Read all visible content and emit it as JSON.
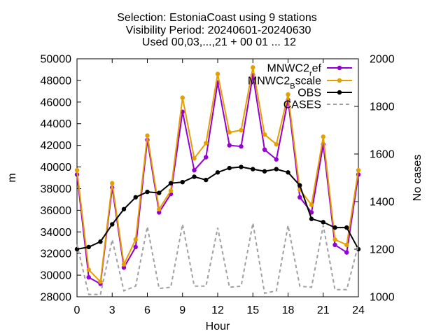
{
  "chart_data": {
    "type": "line",
    "title_lines": [
      "Selection: EstoniaCoast using     9 stations",
      "Visibility   Period: 20240601-20240630",
      "Used 00,03,...,21 + 00 01 ... 12"
    ],
    "xlabel": "Hour",
    "ylabel": "m",
    "y2label": "No cases",
    "xlim": [
      0,
      24
    ],
    "ylim": [
      28000,
      50000
    ],
    "y2lim": [
      1000,
      2000
    ],
    "xticks": [
      "0",
      "3",
      "6",
      "9",
      "12",
      "15",
      "18",
      "21",
      "24"
    ],
    "yticks": [
      "28000",
      "30000",
      "32000",
      "34000",
      "36000",
      "38000",
      "40000",
      "42000",
      "44000",
      "46000",
      "48000",
      "50000"
    ],
    "y2ticks": [
      "1000",
      "1200",
      "1400",
      "1600",
      "1800",
      "2000"
    ],
    "grid": false,
    "legend_position": "top-right",
    "x": [
      0,
      1,
      2,
      3,
      4,
      5,
      6,
      7,
      8,
      9,
      10,
      11,
      12,
      13,
      14,
      15,
      16,
      17,
      18,
      19,
      20,
      21,
      22,
      23,
      24
    ],
    "series": [
      {
        "name": "MNWC2_ref",
        "legend_label": "MNWC2_ref",
        "color": "#9400d3",
        "axis": "y1",
        "marker": "circle",
        "values": [
          39300,
          29800,
          29200,
          38100,
          30700,
          32600,
          42500,
          35800,
          37500,
          45100,
          39700,
          40900,
          47800,
          42000,
          41900,
          48500,
          41600,
          40700,
          46200,
          37200,
          35800,
          42100,
          32800,
          32100,
          39300
        ]
      },
      {
        "name": "MNWC2_Bscale",
        "legend_label": "MNWC2_Bscale",
        "color": "#e69f00",
        "axis": "y1",
        "marker": "circle",
        "values": [
          39700,
          30500,
          29400,
          38500,
          31000,
          33300,
          42900,
          36100,
          37800,
          46400,
          40800,
          42200,
          48600,
          43200,
          43400,
          49200,
          43000,
          42100,
          46700,
          37900,
          36500,
          42800,
          33300,
          32800,
          39700
        ]
      },
      {
        "name": "OBS",
        "legend_label": "OBS",
        "color": "#000000",
        "axis": "y1",
        "marker": "circle",
        "values": [
          32400,
          32600,
          33100,
          34700,
          36100,
          37200,
          37700,
          37600,
          38500,
          38600,
          39100,
          38800,
          39500,
          39900,
          40000,
          39800,
          39600,
          39800,
          39500,
          38300,
          35200,
          34900,
          34400,
          34400,
          32400
        ]
      },
      {
        "name": "CASES",
        "legend_label": "CASES",
        "color": "#a0a0a0",
        "axis": "y2",
        "dashed": true,
        "values": [
          1220,
          1010,
          1010,
          1240,
          1025,
          1045,
          1295,
          1035,
          1040,
          1305,
          1045,
          1045,
          1290,
          1040,
          1045,
          1310,
          1015,
          1025,
          1300,
          1045,
          1040,
          1300,
          1030,
          1030,
          1220
        ]
      }
    ]
  }
}
